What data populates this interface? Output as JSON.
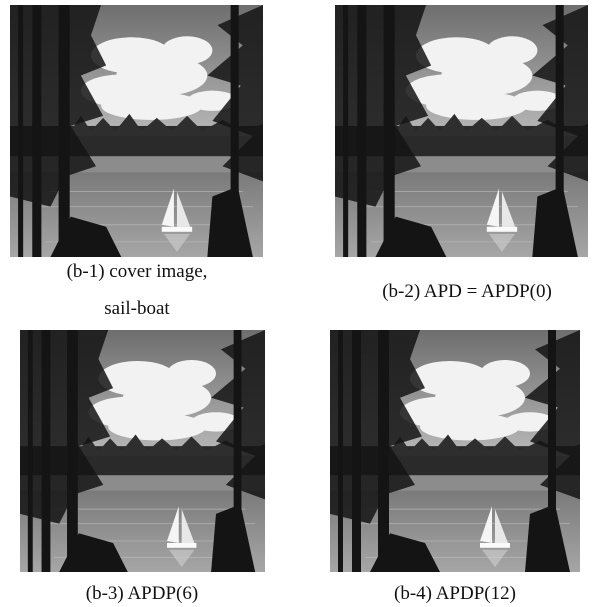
{
  "panels": [
    {
      "caption_lines": [
        "(b-1) cover image,",
        "sail-boat"
      ]
    },
    {
      "caption_lines": [
        "(b-2) APD = APDP(0)"
      ]
    },
    {
      "caption_lines": [
        "(b-3) APDP(6)"
      ]
    },
    {
      "caption_lines": [
        "(b-4) APDP(12)"
      ]
    }
  ]
}
